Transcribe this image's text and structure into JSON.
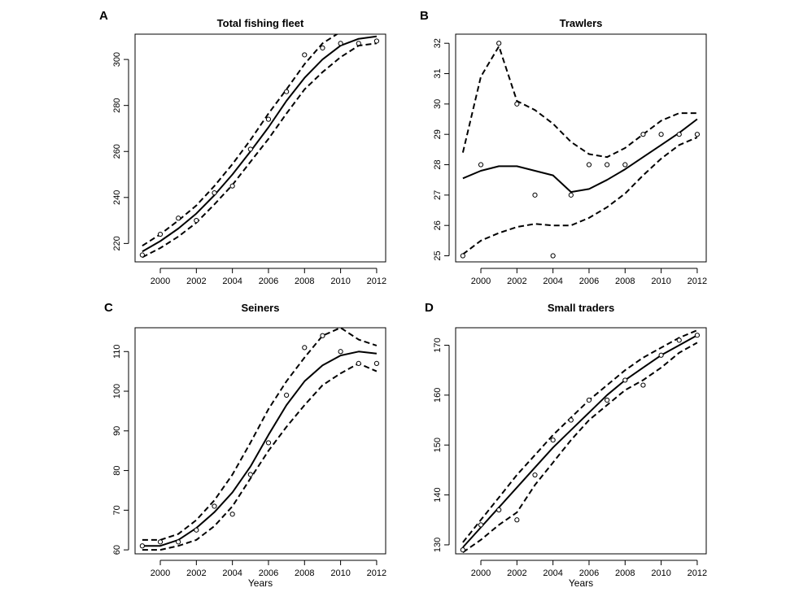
{
  "chart_data": [
    {
      "panel_label": "A",
      "title": "Total fishing fleet",
      "type": "scatter",
      "xlabel": "",
      "ylabel": "",
      "xlim": [
        1998.6,
        2012.5
      ],
      "ylim": [
        212,
        311
      ],
      "xticks": [
        2000,
        2002,
        2004,
        2006,
        2008,
        2010,
        2012
      ],
      "yticks": [
        220,
        240,
        260,
        280,
        300
      ],
      "observed": {
        "x": [
          1999,
          2000,
          2001,
          2002,
          2003,
          2004,
          2005,
          2006,
          2007,
          2008,
          2009,
          2010,
          2011,
          2012
        ],
        "y": [
          215,
          224,
          231,
          230,
          242,
          245,
          261,
          274,
          286,
          302,
          305,
          307,
          307,
          308
        ]
      },
      "fitted": {
        "x": [
          1999,
          2000,
          2001,
          2002,
          2003,
          2004,
          2005,
          2006,
          2007,
          2008,
          2009,
          2010,
          2011,
          2012
        ],
        "y": [
          216.5,
          221,
          226.5,
          233,
          241,
          250,
          260,
          270.5,
          282,
          292,
          300,
          306,
          309,
          310
        ]
      },
      "upper": {
        "x": [
          1999,
          2000,
          2001,
          2002,
          2003,
          2004,
          2005,
          2006,
          2007,
          2008,
          2009,
          2010,
          2011,
          2012
        ],
        "y": [
          219,
          224,
          230,
          236.5,
          245,
          254.5,
          265,
          276.5,
          287,
          298,
          307,
          312,
          313,
          313
        ]
      },
      "lower": {
        "x": [
          1999,
          2000,
          2001,
          2002,
          2003,
          2004,
          2005,
          2006,
          2007,
          2008,
          2009,
          2010,
          2011,
          2012
        ],
        "y": [
          214,
          218,
          223,
          229,
          237,
          245.5,
          255.5,
          265.5,
          276.5,
          287,
          294.5,
          301,
          306,
          307
        ]
      }
    },
    {
      "panel_label": "B",
      "title": "Trawlers",
      "type": "scatter",
      "xlabel": "",
      "ylabel": "",
      "xlim": [
        1998.6,
        2012.5
      ],
      "ylim": [
        24.8,
        32.3
      ],
      "xticks": [
        2000,
        2002,
        2004,
        2006,
        2008,
        2010,
        2012
      ],
      "yticks": [
        25,
        26,
        27,
        28,
        29,
        30,
        31,
        32
      ],
      "observed": {
        "x": [
          1999,
          2000,
          2001,
          2002,
          2003,
          2004,
          2005,
          2006,
          2007,
          2008,
          2009,
          2010,
          2011,
          2012
        ],
        "y": [
          25,
          28,
          32,
          30,
          27,
          25,
          27,
          28,
          28,
          28,
          29,
          29,
          29,
          29
        ]
      },
      "fitted": {
        "x": [
          1999,
          2000,
          2001,
          2002,
          2003,
          2004,
          2005,
          2006,
          2007,
          2008,
          2009,
          2010,
          2011,
          2012
        ],
        "y": [
          27.55,
          27.8,
          27.95,
          27.95,
          27.8,
          27.65,
          27.1,
          27.2,
          27.5,
          27.85,
          28.25,
          28.65,
          29.05,
          29.5
        ]
      },
      "upper": {
        "x": [
          1999,
          2000,
          2001,
          2002,
          2003,
          2004,
          2005,
          2006,
          2007,
          2008,
          2009,
          2010,
          2011,
          2012
        ],
        "y": [
          28.4,
          30.9,
          31.9,
          30.1,
          29.8,
          29.35,
          28.75,
          28.35,
          28.25,
          28.55,
          29.0,
          29.45,
          29.7,
          29.7
        ]
      },
      "lower": {
        "x": [
          1999,
          2000,
          2001,
          2002,
          2003,
          2004,
          2005,
          2006,
          2007,
          2008,
          2009,
          2010,
          2011,
          2012
        ],
        "y": [
          25.05,
          25.5,
          25.75,
          25.95,
          26.05,
          26.0,
          26.0,
          26.25,
          26.6,
          27.05,
          27.65,
          28.2,
          28.65,
          28.9
        ]
      }
    },
    {
      "panel_label": "C",
      "title": "Seiners",
      "type": "scatter",
      "xlabel": "Years",
      "ylabel": "",
      "xlim": [
        1998.6,
        2012.5
      ],
      "ylim": [
        59,
        116
      ],
      "xticks": [
        2000,
        2002,
        2004,
        2006,
        2008,
        2010,
        2012
      ],
      "yticks": [
        60,
        70,
        80,
        90,
        100,
        110
      ],
      "observed": {
        "x": [
          1999,
          2000,
          2001,
          2002,
          2003,
          2004,
          2005,
          2006,
          2007,
          2008,
          2009,
          2010,
          2011,
          2012
        ],
        "y": [
          61,
          62,
          62,
          65,
          71,
          69,
          79,
          87,
          99,
          111,
          114,
          110,
          107,
          107
        ]
      },
      "fitted": {
        "x": [
          1999,
          2000,
          2001,
          2002,
          2003,
          2004,
          2005,
          2006,
          2007,
          2008,
          2009,
          2010,
          2011,
          2012
        ],
        "y": [
          61,
          61,
          62.5,
          65.5,
          69.5,
          74.5,
          81,
          89,
          96.5,
          102.5,
          106.5,
          109,
          110,
          109.5
        ]
      },
      "upper": {
        "x": [
          1999,
          2000,
          2001,
          2002,
          2003,
          2004,
          2005,
          2006,
          2007,
          2008,
          2009,
          2010,
          2011,
          2012
        ],
        "y": [
          62.5,
          62.5,
          64,
          67.5,
          72.5,
          79,
          87,
          95.5,
          102.5,
          108.5,
          114,
          116,
          113,
          111.5
        ]
      },
      "lower": {
        "x": [
          1999,
          2000,
          2001,
          2002,
          2003,
          2004,
          2005,
          2006,
          2007,
          2008,
          2009,
          2010,
          2011,
          2012
        ],
        "y": [
          60,
          60,
          61,
          62.5,
          66,
          71,
          78,
          85,
          91,
          96.5,
          101.5,
          104.5,
          107,
          105
        ]
      }
    },
    {
      "panel_label": "D",
      "title": "Small traders",
      "type": "scatter",
      "xlabel": "Years",
      "ylabel": "",
      "xlim": [
        1998.6,
        2012.5
      ],
      "ylim": [
        128.2,
        173.5
      ],
      "xticks": [
        2000,
        2002,
        2004,
        2006,
        2008,
        2010,
        2012
      ],
      "yticks": [
        130,
        140,
        150,
        160,
        170
      ],
      "observed": {
        "x": [
          1999,
          2000,
          2001,
          2002,
          2003,
          2004,
          2005,
          2006,
          2007,
          2008,
          2009,
          2010,
          2011,
          2012
        ],
        "y": [
          129,
          134,
          137,
          135,
          144,
          151,
          155,
          159,
          159,
          163,
          162,
          168,
          171,
          172
        ]
      },
      "fitted": {
        "x": [
          1999,
          2000,
          2001,
          2002,
          2003,
          2004,
          2005,
          2006,
          2007,
          2008,
          2009,
          2010,
          2011,
          2012
        ],
        "y": [
          129.5,
          133.5,
          137.5,
          141.5,
          145.5,
          149.5,
          153,
          156.5,
          160,
          163,
          165.5,
          168,
          170,
          172
        ]
      },
      "upper": {
        "x": [
          1999,
          2000,
          2001,
          2002,
          2003,
          2004,
          2005,
          2006,
          2007,
          2008,
          2009,
          2010,
          2011,
          2012
        ],
        "y": [
          130.5,
          135,
          139.5,
          144,
          148,
          152,
          155.5,
          159,
          162,
          165,
          167.5,
          169.5,
          171.5,
          173
        ]
      },
      "lower": {
        "x": [
          1999,
          2000,
          2001,
          2002,
          2003,
          2004,
          2005,
          2006,
          2007,
          2008,
          2009,
          2010,
          2011,
          2012
        ],
        "y": [
          128.5,
          131,
          134,
          136.5,
          142,
          146.5,
          151,
          155,
          158,
          161,
          163,
          165.5,
          168.5,
          170.5
        ]
      }
    }
  ]
}
